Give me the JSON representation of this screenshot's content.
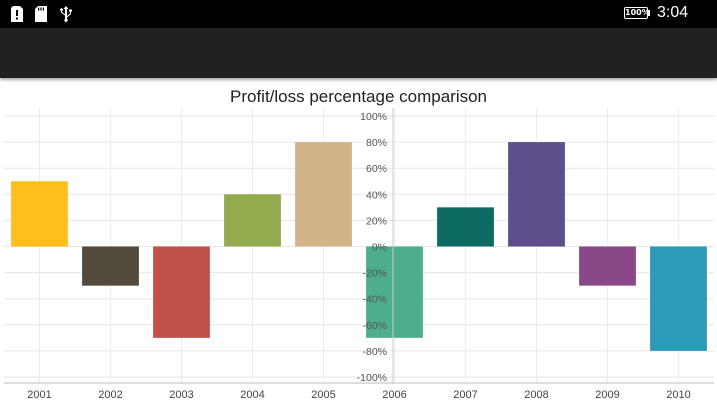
{
  "status_bar": {
    "time": "3:04",
    "battery_label": "100%",
    "icons": [
      "sim-alert-icon",
      "sd-card-icon",
      "usb-icon"
    ]
  },
  "app_bar": {
    "background": "#212121"
  },
  "chart_data": {
    "type": "bar",
    "title": "Profit/loss percentage comparison",
    "xlabel": "",
    "ylabel": "",
    "categories": [
      "2001",
      "2002",
      "2003",
      "2004",
      "2005",
      "2006",
      "2007",
      "2008",
      "2009",
      "2010"
    ],
    "values": [
      50,
      -30,
      -70,
      40,
      80,
      -70,
      30,
      80,
      -30,
      -80
    ],
    "colors": [
      "#FCBF1C",
      "#524A3A",
      "#C2514A",
      "#93AA4E",
      "#D2B488",
      "#4CAD8F",
      "#0C6A63",
      "#5E4E8B",
      "#8B4889",
      "#2B9BB8"
    ],
    "ylim": [
      -100,
      100
    ],
    "yticks": [
      -100,
      -80,
      -60,
      -40,
      -20,
      0,
      20,
      40,
      60,
      80,
      100
    ],
    "ytick_labels": [
      "-100%",
      "-80%",
      "-60%",
      "-40%",
      "-20%",
      "0%",
      "20%",
      "40%",
      "60%",
      "80%",
      "100%"
    ],
    "grid": true,
    "legend": "none"
  }
}
